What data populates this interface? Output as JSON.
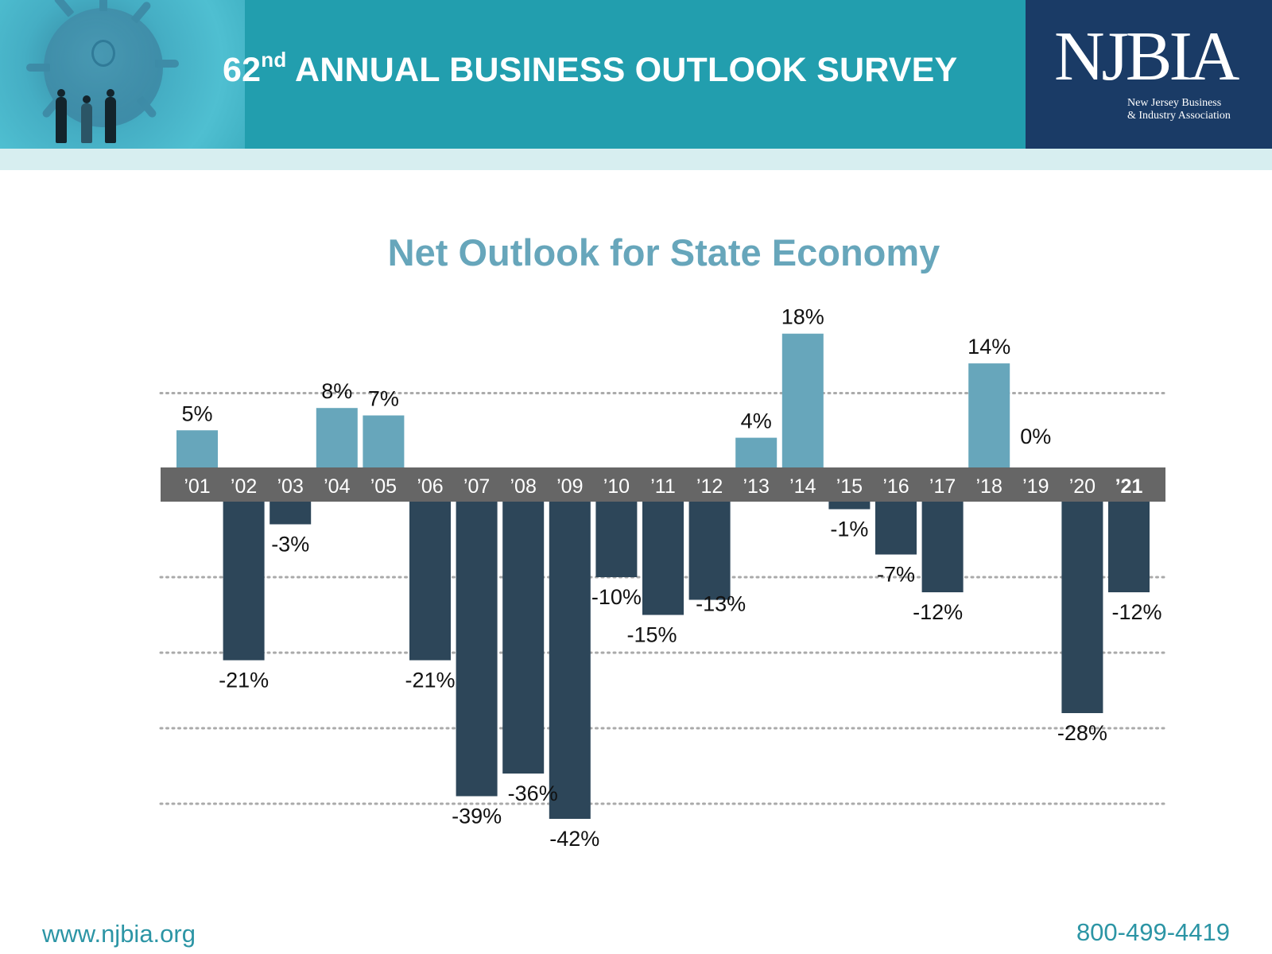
{
  "header": {
    "title_number": "62",
    "title_suffix": "nd",
    "title_rest": "ANNUAL BUSINESS OUTLOOK SURVEY",
    "logo_main": "NJBIA",
    "logo_sub_line1": "New Jersey Business",
    "logo_sub_line2": "& Industry Association",
    "colors": {
      "header_bg": "#229eae",
      "logo_bg": "#1a3b66",
      "band": "#d7eef0"
    }
  },
  "footer": {
    "website": "www.njbia.org",
    "phone": "800-499-4419"
  },
  "chart_data": {
    "type": "bar",
    "title": "Net Outlook for State Economy",
    "xlabel": "",
    "ylabel": "",
    "categories": [
      "’01",
      "’02",
      "’03",
      "’04",
      "’05",
      "’06",
      "’07",
      "’08",
      "’09",
      "’10",
      "’11",
      "’12",
      "’13",
      "’14",
      "’15",
      "’16",
      "’17",
      "’18",
      "’19",
      "’20",
      "’21"
    ],
    "values": [
      5,
      -21,
      -3,
      8,
      7,
      -21,
      -39,
      -36,
      -42,
      -10,
      -15,
      -13,
      4,
      18,
      -1,
      -7,
      -12,
      14,
      0,
      -28,
      -12
    ],
    "labels": [
      "5%",
      "-21%",
      "-3%",
      "8%",
      "7%",
      "-21%",
      "-39%",
      "-36%",
      "-42%",
      "-10%",
      "-15%",
      "-13%",
      "4%",
      "18%",
      "-1%",
      "-7%",
      "-12%",
      "14%",
      "0%",
      "-28%",
      "-12%"
    ],
    "highlight_category": "’21",
    "gridlines": [
      10,
      -10,
      -20,
      -30,
      -40
    ],
    "grid": true,
    "ylim": [
      -45,
      20
    ],
    "legend": "none",
    "colors": {
      "positive": "#67a6bb",
      "negative": "#2d4659",
      "axis_band": "#666666",
      "title": "#67a6bb"
    }
  }
}
